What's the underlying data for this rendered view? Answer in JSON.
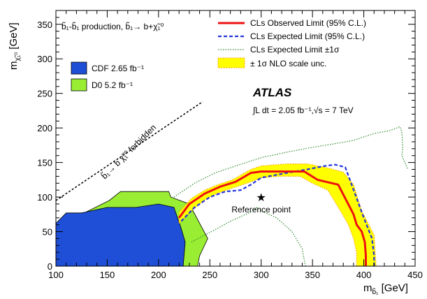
{
  "chart_data": {
    "type": "line",
    "title": "",
    "process_label": "b̃₁-b̃₁ production, b̃₁→ b+χ̃₁⁰",
    "xlabel": "m_b̃₁ [GeV]",
    "ylabel": "m_χ̃₁⁰ [GeV]",
    "xlim": [
      100,
      450
    ],
    "ylim": [
      0,
      370
    ],
    "x_ticks": [
      "100",
      "150",
      "200",
      "250",
      "300",
      "350",
      "400",
      "450"
    ],
    "y_ticks": [
      "0",
      "50",
      "100",
      "150",
      "200",
      "250",
      "300",
      "350"
    ],
    "grid": false,
    "legend_position": "top-right",
    "legend": [
      {
        "label": "CLs Observed Limit (95% C.L.)",
        "color": "#ee1111",
        "style": "solid"
      },
      {
        "label": "CLs Expected Limit (95% C.L.)",
        "color": "#2233dd",
        "style": "dashed"
      },
      {
        "label": "CLs Expected Limit ±1σ",
        "color": "#2e8b2e",
        "style": "dotted"
      },
      {
        "label": "± 1σ NLO scale unc.",
        "color": "#ffff00",
        "style": "band"
      }
    ],
    "prior_limits": [
      {
        "label": "CDF 2.65 fb⁻¹",
        "color": "#1f4fd6"
      },
      {
        "label": "D0 5.2 fb⁻¹",
        "color": "#99ee33"
      }
    ],
    "atlas_label": "ATLAS",
    "lumi_label": "∫L dt = 2.05 fb⁻¹,√s = 7 TeV",
    "forbidden_label": "b̃₁→ b χ̃₁⁰ forbidden",
    "reference_label": "Reference point",
    "reference_point": {
      "x": 300,
      "y": 100
    },
    "series": [
      {
        "name": "CLs Observed Limit (95% C.L.)",
        "kind": "observed",
        "x": [
          220,
          230,
          245,
          260,
          275,
          290,
          300,
          325,
          342,
          355,
          375,
          390,
          393,
          398,
          401,
          402,
          402
        ],
        "y": [
          70,
          90,
          105,
          115,
          122,
          135,
          137,
          137,
          137,
          125,
          118,
          75,
          60,
          50,
          35,
          15,
          0
        ]
      },
      {
        "name": "CLs Expected Limit (95% C.L.)",
        "kind": "expected",
        "x": [
          222,
          235,
          250,
          265,
          280,
          290,
          300,
          325,
          345,
          355,
          362,
          372,
          382,
          400,
          408,
          410,
          410
        ],
        "y": [
          65,
          85,
          100,
          108,
          110,
          118,
          128,
          135,
          140,
          143,
          145,
          147,
          143,
          70,
          40,
          15,
          0
        ]
      },
      {
        "name": "CLs Expected Limit ±1σ (upper)",
        "kind": "exp_plus",
        "x": [
          215,
          235,
          255,
          275,
          300,
          325,
          350,
          375,
          390,
          400,
          410,
          425,
          432,
          435,
          437,
          438,
          437,
          440,
          443
        ],
        "y": [
          100,
          120,
          135,
          145,
          157,
          165,
          172,
          178,
          182,
          187,
          192,
          196,
          200,
          202,
          195,
          172,
          160,
          150,
          140
        ]
      },
      {
        "name": "CLs Expected Limit ±1σ (lower)",
        "kind": "exp_minus",
        "x": [
          232,
          245,
          258,
          270,
          285,
          292,
          296,
          300,
          315,
          330,
          340,
          343
        ],
        "y": [
          35,
          45,
          55,
          65,
          75,
          80,
          85,
          80,
          70,
          50,
          25,
          0
        ]
      },
      {
        "name": "± 1σ NLO scale unc. (upper)",
        "kind": "nlo_up",
        "x": [
          220,
          232,
          245,
          258,
          272,
          290,
          300,
          325,
          345,
          365,
          380,
          390,
          398,
          410,
          412
        ],
        "y": [
          78,
          98,
          110,
          118,
          125,
          140,
          145,
          148,
          148,
          142,
          136,
          118,
          80,
          45,
          0
        ]
      },
      {
        "name": "± 1σ NLO scale unc. (lower)",
        "kind": "nlo_down",
        "x": [
          220,
          232,
          245,
          258,
          272,
          290,
          300,
          318,
          338,
          350,
          365,
          378,
          385,
          390,
          393,
          393
        ],
        "y": [
          62,
          80,
          96,
          106,
          113,
          122,
          128,
          130,
          130,
          120,
          110,
          78,
          60,
          40,
          20,
          0
        ]
      }
    ],
    "excluded_regions": [
      {
        "name": "D0 5.2 fb⁻¹",
        "x": [
          100,
          108,
          122,
          152,
          163,
          210,
          212,
          230,
          248,
          240,
          238,
          100
        ],
        "y": [
          52,
          60,
          73,
          95,
          108,
          108,
          100,
          90,
          40,
          15,
          0,
          0
        ]
      },
      {
        "name": "CDF 2.65 fb⁻¹",
        "x": [
          100,
          110,
          125,
          150,
          178,
          200,
          215,
          222,
          226,
          224,
          100
        ],
        "y": [
          62,
          77,
          77,
          85,
          85,
          90,
          85,
          55,
          35,
          0,
          0
        ]
      }
    ],
    "kinematic_boundary": {
      "x": [
        100,
        243
      ],
      "y": [
        95,
        238
      ]
    }
  }
}
